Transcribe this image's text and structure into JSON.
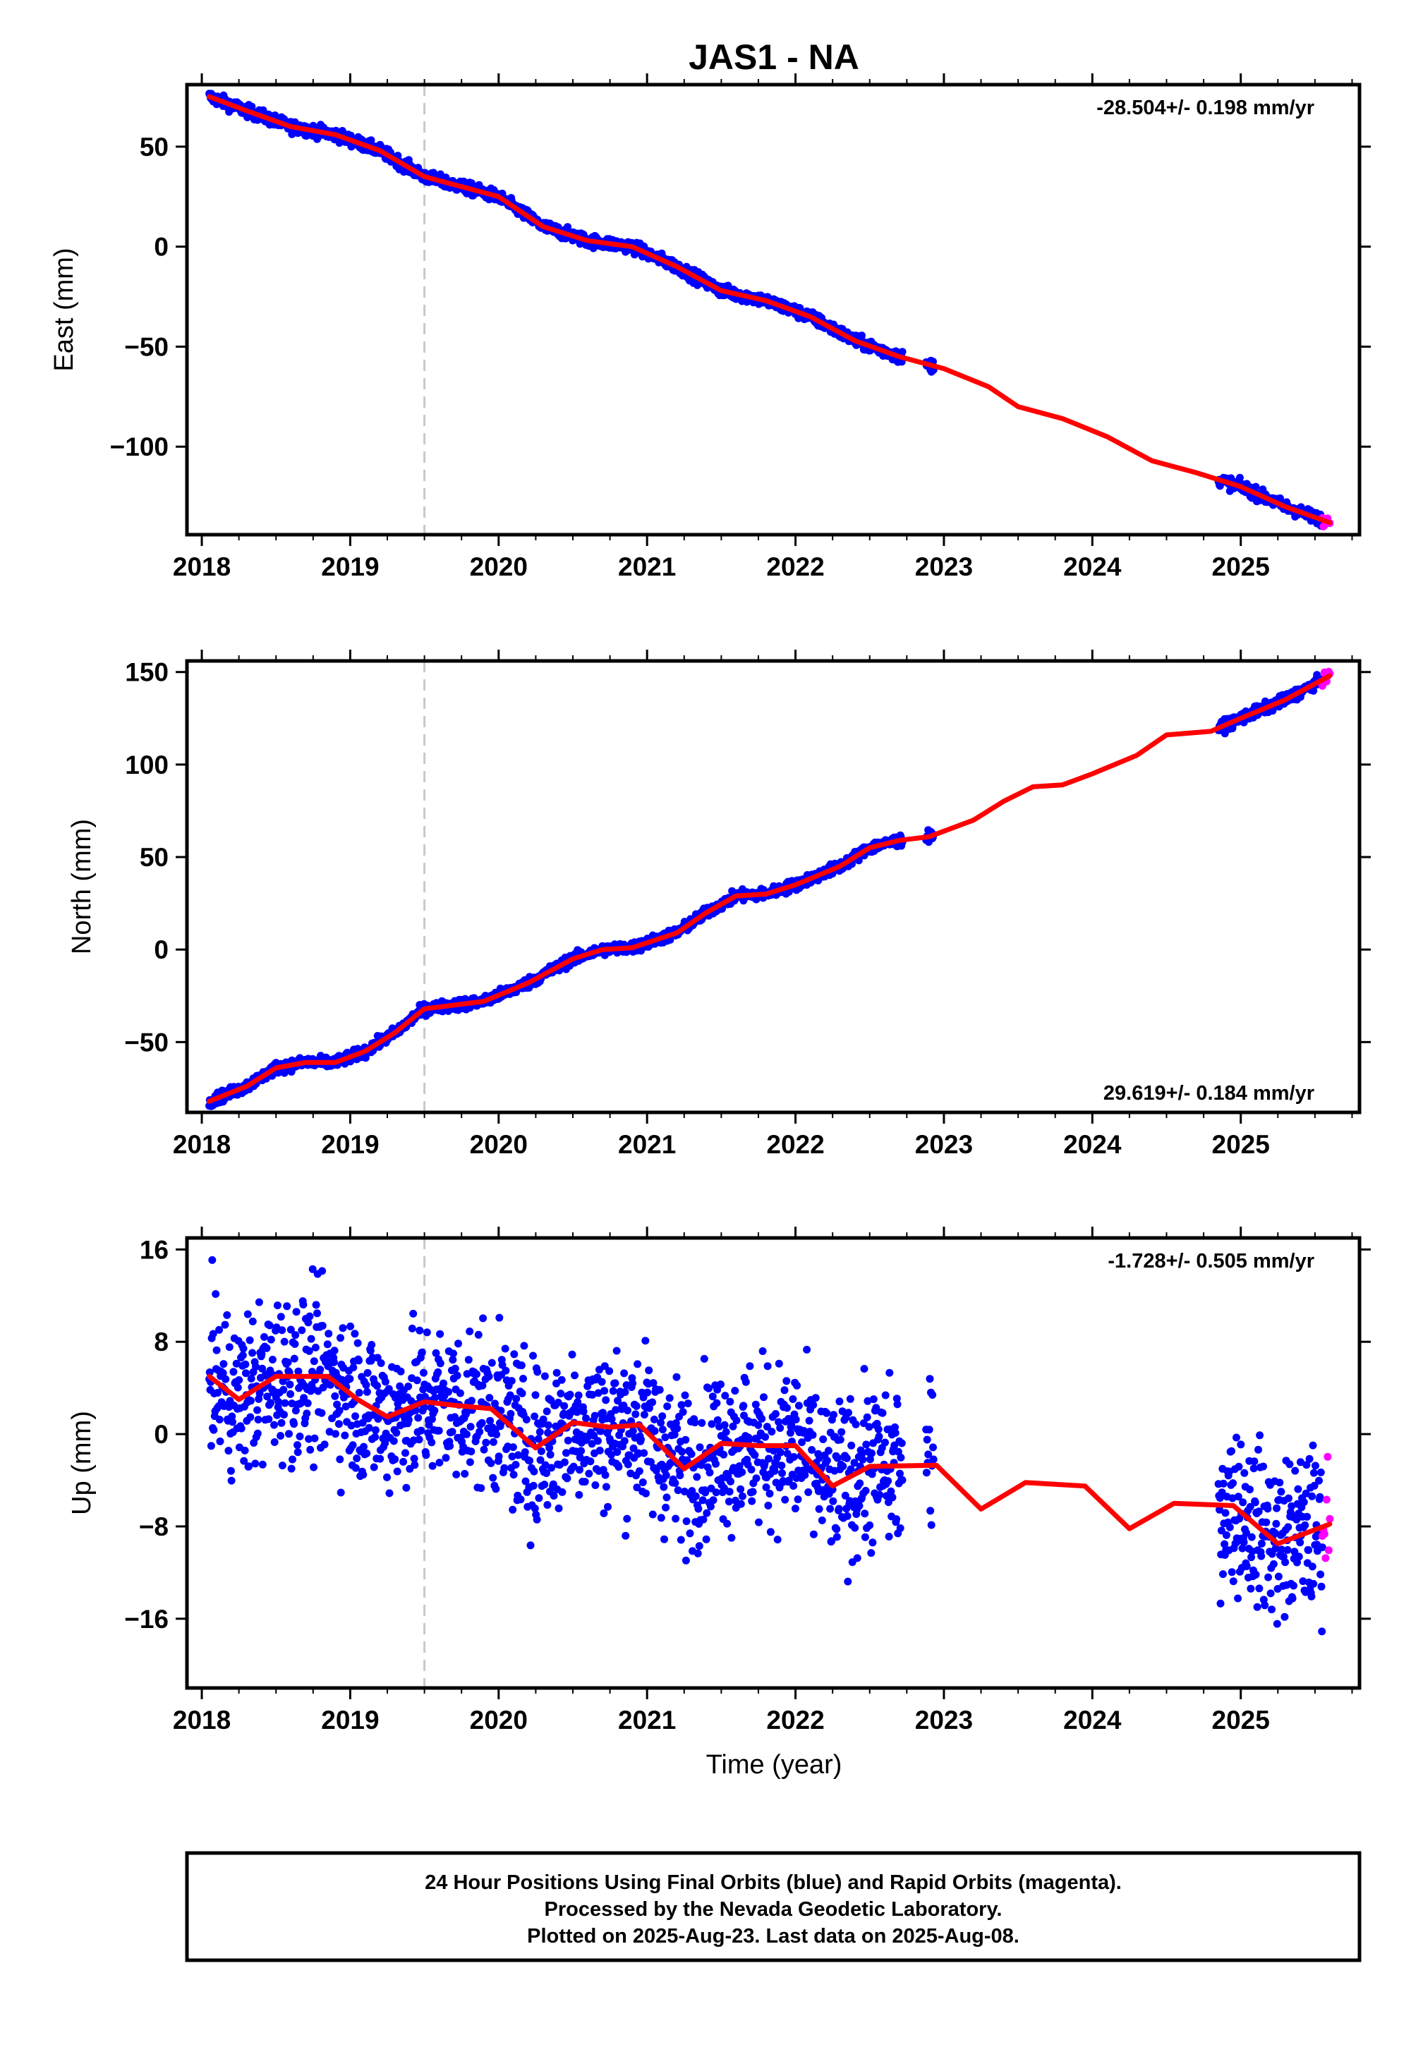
{
  "title": "JAS1 - NA",
  "x_axis_label": "Time (year)",
  "colors": {
    "final": "#0000ff",
    "rapid": "#ff00ff",
    "model": "#ff0000",
    "event_line": "#c8c8c8"
  },
  "footer": {
    "line1": "24 Hour Positions Using Final Orbits (blue) and Rapid Orbits (magenta).",
    "line2": "Processed by the Nevada Geodetic Laboratory.",
    "line3": "Plotted on 2025-Aug-23. Last data on 2025-Aug-08."
  },
  "chart_data": [
    {
      "type": "scatter",
      "id": "east",
      "ylabel": "East (mm)",
      "rate_label": "-28.504+/- 0.198 mm/yr",
      "rate_position": "top-right",
      "xlim": [
        2017.9,
        2025.8
      ],
      "ylim": [
        -144,
        81
      ],
      "xticks": [
        2018,
        2019,
        2020,
        2021,
        2022,
        2023,
        2024,
        2025
      ],
      "yticks": [
        50,
        0,
        -50,
        -100
      ],
      "ytick_labels": [
        "50",
        "0",
        "−50",
        "−100"
      ],
      "event_line_x": 2019.5,
      "noise_mm": 1.5,
      "model_curve": [
        [
          2018.05,
          75
        ],
        [
          2018.3,
          68
        ],
        [
          2018.6,
          60
        ],
        [
          2018.9,
          56
        ],
        [
          2019.2,
          48
        ],
        [
          2019.5,
          35
        ],
        [
          2019.7,
          31
        ],
        [
          2020.0,
          25
        ],
        [
          2020.3,
          10
        ],
        [
          2020.6,
          3
        ],
        [
          2020.9,
          0
        ],
        [
          2021.2,
          -10
        ],
        [
          2021.5,
          -22
        ],
        [
          2021.8,
          -27
        ],
        [
          2022.1,
          -35
        ],
        [
          2022.4,
          -47
        ],
        [
          2022.7,
          -55
        ],
        [
          2023.0,
          -61
        ],
        [
          2023.3,
          -70
        ],
        [
          2023.5,
          -80
        ],
        [
          2023.8,
          -86
        ],
        [
          2024.1,
          -95
        ],
        [
          2024.4,
          -107
        ],
        [
          2024.7,
          -113
        ],
        [
          2025.0,
          -120
        ],
        [
          2025.3,
          -130
        ],
        [
          2025.6,
          -138
        ]
      ],
      "final_segments": [
        [
          2018.05,
          2022.72
        ],
        [
          2022.88,
          2022.93
        ],
        [
          2024.85,
          2025.55
        ]
      ],
      "rapid_range": [
        2025.55,
        2025.6
      ]
    },
    {
      "type": "scatter",
      "id": "north",
      "ylabel": "North (mm)",
      "rate_label": "29.619+/- 0.184 mm/yr",
      "rate_position": "bottom-right",
      "xlim": [
        2017.9,
        2025.8
      ],
      "ylim": [
        -88,
        156
      ],
      "xticks": [
        2018,
        2019,
        2020,
        2021,
        2022,
        2023,
        2024,
        2025
      ],
      "yticks": [
        150,
        100,
        50,
        0,
        -50
      ],
      "ytick_labels": [
        "150",
        "100",
        "50",
        "0",
        "−50"
      ],
      "event_line_x": 2019.5,
      "noise_mm": 1.5,
      "model_curve": [
        [
          2018.05,
          -82
        ],
        [
          2018.3,
          -74
        ],
        [
          2018.5,
          -64
        ],
        [
          2018.7,
          -61
        ],
        [
          2018.9,
          -61
        ],
        [
          2019.1,
          -55
        ],
        [
          2019.3,
          -45
        ],
        [
          2019.5,
          -32
        ],
        [
          2019.7,
          -30
        ],
        [
          2019.9,
          -28
        ],
        [
          2020.2,
          -18
        ],
        [
          2020.5,
          -5
        ],
        [
          2020.7,
          0
        ],
        [
          2020.9,
          1
        ],
        [
          2021.2,
          9
        ],
        [
          2021.4,
          20
        ],
        [
          2021.6,
          29
        ],
        [
          2021.8,
          30
        ],
        [
          2022.0,
          35
        ],
        [
          2022.3,
          45
        ],
        [
          2022.5,
          55
        ],
        [
          2022.7,
          59
        ],
        [
          2022.9,
          61
        ],
        [
          2023.2,
          70
        ],
        [
          2023.4,
          80
        ],
        [
          2023.6,
          88
        ],
        [
          2023.8,
          89
        ],
        [
          2024.0,
          95
        ],
        [
          2024.3,
          105
        ],
        [
          2024.5,
          116
        ],
        [
          2024.8,
          118
        ],
        [
          2025.0,
          125
        ],
        [
          2025.3,
          135
        ],
        [
          2025.6,
          148
        ]
      ],
      "final_segments": [
        [
          2018.05,
          2022.72
        ],
        [
          2022.88,
          2022.93
        ],
        [
          2024.85,
          2025.55
        ]
      ],
      "rapid_range": [
        2025.55,
        2025.6
      ]
    },
    {
      "type": "scatter",
      "id": "up",
      "ylabel": "Up (mm)",
      "rate_label": "-1.728+/- 0.505 mm/yr",
      "rate_position": "top-right",
      "xlim": [
        2017.9,
        2025.8
      ],
      "ylim": [
        -22,
        17
      ],
      "xticks": [
        2018,
        2019,
        2020,
        2021,
        2022,
        2023,
        2024,
        2025
      ],
      "yticks": [
        16,
        8,
        0,
        -8,
        -16
      ],
      "ytick_labels": [
        "16",
        "8",
        "0",
        "−8",
        "−16"
      ],
      "event_line_x": 2019.5,
      "noise_mm": 3.5,
      "model_curve": [
        [
          2018.05,
          5
        ],
        [
          2018.25,
          3
        ],
        [
          2018.5,
          5
        ],
        [
          2018.85,
          5
        ],
        [
          2019.05,
          3
        ],
        [
          2019.25,
          1.5
        ],
        [
          2019.5,
          2.8
        ],
        [
          2019.7,
          2.5
        ],
        [
          2019.95,
          2.2
        ],
        [
          2020.25,
          -1.2
        ],
        [
          2020.5,
          1
        ],
        [
          2020.75,
          0.6
        ],
        [
          2020.95,
          0.8
        ],
        [
          2021.25,
          -3
        ],
        [
          2021.5,
          -0.8
        ],
        [
          2021.75,
          -1
        ],
        [
          2022.0,
          -1
        ],
        [
          2022.25,
          -4.5
        ],
        [
          2022.5,
          -2.8
        ],
        [
          2022.95,
          -2.7
        ],
        [
          2023.25,
          -6.5
        ],
        [
          2023.55,
          -4.2
        ],
        [
          2023.95,
          -4.5
        ],
        [
          2024.25,
          -8.2
        ],
        [
          2024.55,
          -6
        ],
        [
          2024.95,
          -6.2
        ],
        [
          2025.25,
          -9.5
        ],
        [
          2025.6,
          -7.8
        ]
      ],
      "final_segments": [
        [
          2018.05,
          2022.72
        ],
        [
          2022.88,
          2022.93
        ],
        [
          2024.85,
          2025.55
        ]
      ],
      "rapid_range": [
        2025.55,
        2025.6
      ]
    }
  ]
}
